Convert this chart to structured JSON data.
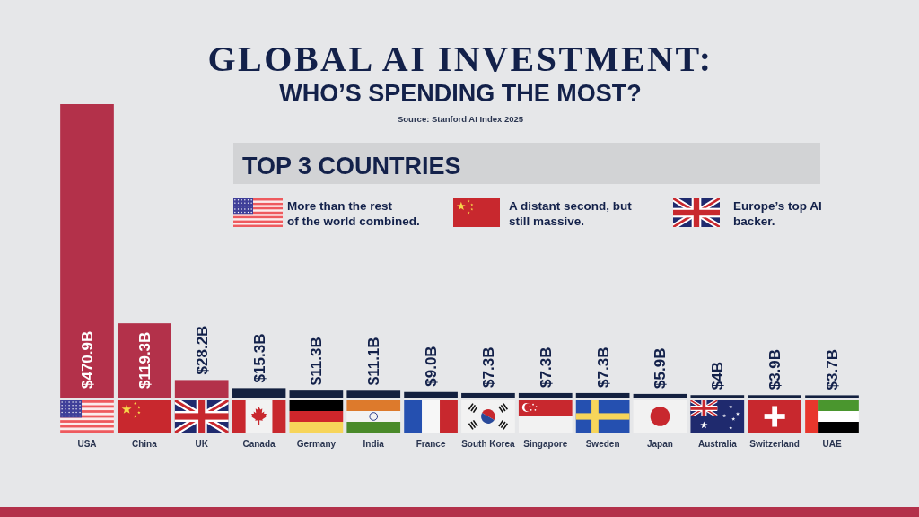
{
  "chart_data": {
    "type": "bar",
    "title": "GLOBAL AI INVESTMENT:",
    "subtitle": "WHO’S SPENDING THE MOST?",
    "categories": [
      "USA",
      "China",
      "UK",
      "Canada",
      "Germany",
      "India",
      "France",
      "South Korea",
      "Singapore",
      "Sweden",
      "Japan",
      "Australia",
      "Switzerland",
      "UAE"
    ],
    "values": [
      470.9,
      119.3,
      28.2,
      15.3,
      11.3,
      11.1,
      9.0,
      7.3,
      7.3,
      7.3,
      5.9,
      4,
      3.9,
      3.7
    ],
    "colors": [
      "#b3314a",
      "#b3314a",
      "#b3314a",
      "#13203f",
      "#13203f",
      "#13203f",
      "#13203f",
      "#13203f",
      "#13203f",
      "#13203f",
      "#13203f",
      "#13203f",
      "#13203f",
      "#13203f"
    ],
    "value_labels": [
      "$470.9B",
      "$119.3B",
      "$28.2B",
      "$15.3B",
      "$11.3B",
      "$11.1B",
      "$9.0B",
      "$7.3B",
      "$7.3B",
      "$7.3B",
      "$5.9B",
      "$4B",
      "$3.9B",
      "$3.7B"
    ],
    "annotations": [
      "Source: Stanford AI Index 2025",
      "TOP 3 COUNTRIES",
      "More than the rest\nof the world combined.",
      "A distant second, but\nstill massive.",
      "Europe’s top AI\nbacker."
    ]
  }
}
